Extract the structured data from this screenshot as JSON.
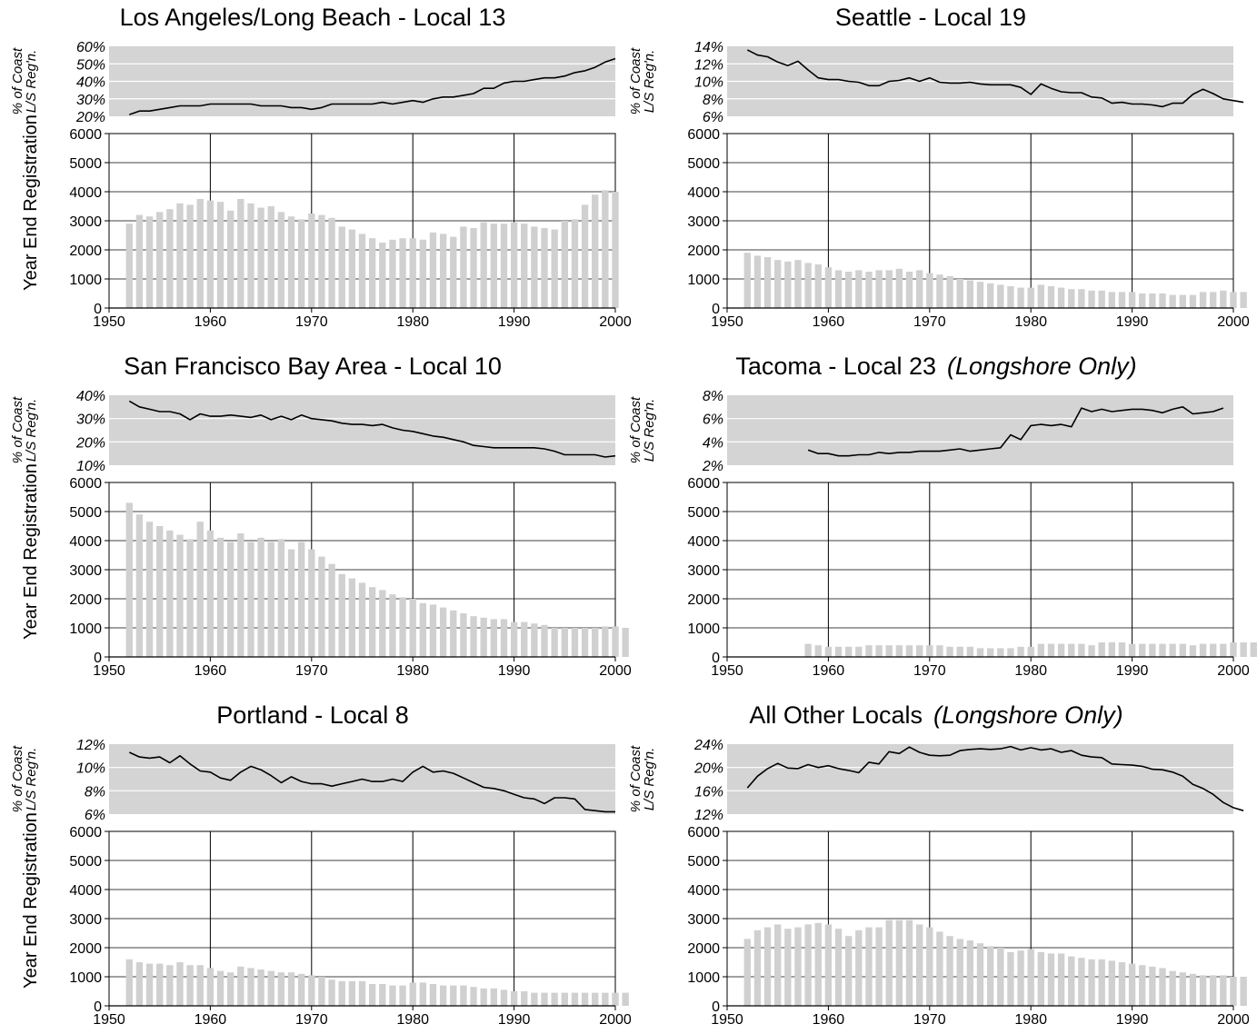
{
  "chart_data": [
    {
      "type": "bar",
      "title": "Los Angeles/Long Beach - Local 13",
      "subtitle": "",
      "ylabel": "Year End Registration",
      "ylim": [
        0,
        6000
      ],
      "xlim": [
        1950,
        2000
      ],
      "yticks": [
        "0",
        "1000",
        "2000",
        "3000",
        "4000",
        "5000",
        "6000"
      ],
      "xticks": [
        "1950",
        "1960",
        "1970",
        "1980",
        "1990",
        "2000"
      ],
      "years_start": 1952,
      "values": [
        2900,
        3200,
        3150,
        3300,
        3400,
        3600,
        3550,
        3750,
        3700,
        3650,
        3350,
        3750,
        3600,
        3450,
        3500,
        3300,
        3150,
        3050,
        3250,
        3200,
        3100,
        2800,
        2700,
        2550,
        2400,
        2250,
        2350,
        2400,
        2400,
        2350,
        2600,
        2550,
        2450,
        2800,
        2750,
        2950,
        2900,
        2900,
        2950,
        2900,
        2800,
        2750,
        2700,
        3000,
        3050,
        3550,
        3900,
        4050,
        4000
      ],
      "share": {
        "ylabel": [
          "% of Coast",
          "L/S Reg'n."
        ],
        "ylim": [
          20,
          60
        ],
        "yticks": [
          "20%",
          "30%",
          "40%",
          "50%",
          "60%"
        ],
        "values": [
          21,
          23,
          23,
          24,
          25,
          26,
          26,
          26,
          27,
          27,
          27,
          27,
          27,
          26,
          26,
          26,
          25,
          25,
          24,
          25,
          27,
          27,
          27,
          27,
          27,
          28,
          27,
          28,
          29,
          28,
          30,
          31,
          31,
          32,
          33,
          36,
          36,
          39,
          40,
          40,
          41,
          42,
          42,
          43,
          45,
          46,
          48,
          51,
          53
        ]
      }
    },
    {
      "type": "bar",
      "title": "Seattle - Local 19",
      "subtitle": "",
      "ylabel": "",
      "ylim": [
        0,
        6000
      ],
      "xlim": [
        1950,
        2000
      ],
      "yticks": [
        "0",
        "1000",
        "2000",
        "3000",
        "4000",
        "5000",
        "6000"
      ],
      "xticks": [
        "1950",
        "1960",
        "1970",
        "1980",
        "1990",
        "2000"
      ],
      "years_start": 1952,
      "values": [
        1900,
        1800,
        1750,
        1650,
        1600,
        1650,
        1550,
        1500,
        1400,
        1300,
        1250,
        1300,
        1250,
        1300,
        1300,
        1350,
        1250,
        1300,
        1200,
        1150,
        1100,
        1000,
        950,
        900,
        850,
        800,
        750,
        700,
        700,
        800,
        750,
        700,
        650,
        650,
        600,
        600,
        550,
        550,
        550,
        500,
        500,
        500,
        450,
        450,
        450,
        550,
        550,
        600,
        550,
        550
      ],
      "share": {
        "ylabel": [
          "% of Coast",
          "L/S Reg'n."
        ],
        "ylim": [
          6,
          14
        ],
        "yticks": [
          "6%",
          "8%",
          "10%",
          "12%",
          "14%"
        ],
        "values": [
          13.6,
          13.0,
          12.8,
          12.2,
          11.8,
          12.3,
          11.3,
          10.4,
          10.2,
          10.2,
          10.0,
          9.9,
          9.5,
          9.5,
          10.0,
          10.1,
          10.4,
          10.0,
          10.4,
          9.9,
          9.8,
          9.8,
          9.9,
          9.7,
          9.6,
          9.6,
          9.6,
          9.3,
          8.5,
          9.7,
          9.2,
          8.8,
          8.7,
          8.7,
          8.2,
          8.1,
          7.5,
          7.6,
          7.4,
          7.4,
          7.3,
          7.1,
          7.5,
          7.5,
          8.5,
          9.1,
          8.6,
          8.0,
          7.8,
          7.6
        ]
      }
    },
    {
      "type": "bar",
      "title": "San Francisco Bay Area - Local 10",
      "subtitle": "",
      "ylabel": "Year End Registration",
      "ylim": [
        0,
        6000
      ],
      "xlim": [
        1950,
        2000
      ],
      "yticks": [
        "0",
        "1000",
        "2000",
        "3000",
        "4000",
        "5000",
        "6000"
      ],
      "xticks": [
        "1950",
        "1960",
        "1970",
        "1980",
        "1990",
        "2000"
      ],
      "years_start": 1952,
      "values": [
        5300,
        4900,
        4650,
        4500,
        4350,
        4200,
        4050,
        4650,
        4350,
        4100,
        3950,
        4250,
        3950,
        4100,
        3950,
        4050,
        3700,
        3950,
        3700,
        3450,
        3200,
        2850,
        2700,
        2550,
        2400,
        2300,
        2150,
        2050,
        2000,
        1850,
        1800,
        1700,
        1600,
        1500,
        1400,
        1350,
        1300,
        1300,
        1200,
        1200,
        1150,
        1100,
        1000,
        1000,
        1000,
        1000,
        1000,
        1050,
        1050,
        1000
      ],
      "share": {
        "ylabel": [
          "% of Coast",
          "L/S Reg'n."
        ],
        "ylim": [
          10,
          40
        ],
        "yticks": [
          "10%",
          "20%",
          "30%",
          "40%"
        ],
        "values": [
          37.5,
          35,
          34,
          33,
          33,
          32,
          29.5,
          32,
          31,
          31,
          31.5,
          31,
          30.5,
          31.5,
          29.5,
          31,
          29.5,
          31.5,
          30,
          29.5,
          29,
          28,
          27.5,
          27.5,
          27,
          27.5,
          26,
          25,
          24.5,
          23.5,
          22.5,
          22,
          21,
          20,
          18.5,
          18,
          17.5,
          17.5,
          17.5,
          17.5,
          17.5,
          17,
          16,
          14.5,
          14.5,
          14.5,
          14.5,
          13.5,
          14
        ]
      }
    },
    {
      "type": "bar",
      "title": "Tacoma - Local 23",
      "subtitle": "(Longshore Only)",
      "ylabel": "",
      "ylim": [
        0,
        6000
      ],
      "xlim": [
        1950,
        2000
      ],
      "yticks": [
        "0",
        "1000",
        "2000",
        "3000",
        "4000",
        "5000",
        "6000"
      ],
      "xticks": [
        "1950",
        "1960",
        "1970",
        "1980",
        "1990",
        "2000"
      ],
      "years_start": 1958,
      "values": [
        450,
        400,
        350,
        350,
        350,
        350,
        400,
        400,
        400,
        400,
        400,
        400,
        400,
        400,
        350,
        350,
        350,
        300,
        300,
        300,
        300,
        350,
        350,
        450,
        450,
        450,
        450,
        450,
        400,
        500,
        500,
        500,
        450,
        450,
        450,
        450,
        450,
        450,
        400,
        450,
        450,
        450,
        500,
        500,
        500
      ],
      "share": {
        "ylabel": [
          "% of Coast",
          "L/S Reg'n."
        ],
        "ylim": [
          2,
          8
        ],
        "yticks": [
          "2%",
          "4%",
          "6%",
          "8%"
        ],
        "values": [
          3.3,
          3.0,
          3.0,
          2.8,
          2.8,
          2.9,
          2.9,
          3.1,
          3.0,
          3.1,
          3.1,
          3.2,
          3.2,
          3.2,
          3.3,
          3.4,
          3.2,
          3.3,
          3.4,
          3.5,
          4.6,
          4.2,
          5.4,
          5.5,
          5.4,
          5.5,
          5.3,
          6.9,
          6.6,
          6.8,
          6.6,
          6.7,
          6.8,
          6.8,
          6.7,
          6.5,
          6.8,
          7.0,
          6.4,
          6.5,
          6.6,
          6.9
        ]
      }
    },
    {
      "type": "bar",
      "title": "Portland - Local 8",
      "subtitle": "",
      "ylabel": "Year End Registration",
      "ylim": [
        0,
        6000
      ],
      "xlim": [
        1950,
        2000
      ],
      "yticks": [
        "0",
        "1000",
        "2000",
        "3000",
        "4000",
        "5000",
        "6000"
      ],
      "xticks": [
        "1950",
        "1960",
        "1970",
        "1980",
        "1990",
        "2000"
      ],
      "years_start": 1952,
      "values": [
        1600,
        1500,
        1450,
        1450,
        1400,
        1500,
        1400,
        1400,
        1300,
        1200,
        1150,
        1350,
        1300,
        1250,
        1200,
        1150,
        1150,
        1100,
        1050,
        1000,
        900,
        850,
        850,
        850,
        750,
        750,
        700,
        700,
        800,
        800,
        750,
        700,
        700,
        700,
        650,
        600,
        600,
        550,
        500,
        500,
        450,
        450,
        450,
        450,
        450,
        450,
        450,
        450,
        450,
        450
      ],
      "share": {
        "ylabel": [
          "% of Coast",
          "L/S Reg'n."
        ],
        "ylim": [
          6,
          12
        ],
        "yticks": [
          "6%",
          "8%",
          "10%",
          "12%"
        ],
        "values": [
          11.3,
          10.9,
          10.8,
          10.9,
          10.4,
          11.0,
          10.3,
          9.7,
          9.6,
          9.1,
          8.9,
          9.6,
          10.1,
          9.8,
          9.3,
          8.7,
          9.2,
          8.8,
          8.6,
          8.6,
          8.4,
          8.6,
          8.8,
          9.0,
          8.8,
          8.8,
          9.0,
          8.8,
          9.6,
          10.1,
          9.6,
          9.7,
          9.5,
          9.1,
          8.7,
          8.3,
          8.2,
          8.0,
          7.7,
          7.4,
          7.3,
          6.9,
          7.4,
          7.4,
          7.3,
          6.4,
          6.3,
          6.2,
          6.2
        ]
      }
    },
    {
      "type": "bar",
      "title": "All Other Locals",
      "subtitle": "(Longshore Only)",
      "ylabel": "",
      "ylim": [
        0,
        6000
      ],
      "xlim": [
        1950,
        2000
      ],
      "yticks": [
        "0",
        "1000",
        "2000",
        "3000",
        "4000",
        "5000",
        "6000"
      ],
      "xticks": [
        "1950",
        "1960",
        "1970",
        "1980",
        "1990",
        "2000"
      ],
      "years_start": 1952,
      "values": [
        2300,
        2600,
        2700,
        2800,
        2650,
        2700,
        2800,
        2850,
        2800,
        2650,
        2400,
        2600,
        2700,
        2700,
        2950,
        2950,
        2950,
        2800,
        2700,
        2550,
        2400,
        2300,
        2250,
        2150,
        2050,
        2000,
        1850,
        1900,
        1950,
        1850,
        1800,
        1800,
        1700,
        1650,
        1600,
        1600,
        1550,
        1500,
        1450,
        1400,
        1350,
        1300,
        1200,
        1150,
        1100,
        1050,
        1050,
        1050,
        1000,
        1000
      ],
      "share": {
        "ylabel": [
          "% of Coast",
          "L/S Reg'n."
        ],
        "ylim": [
          12,
          24
        ],
        "yticks": [
          "12%",
          "16%",
          "20%",
          "24%"
        ],
        "values": [
          16.5,
          18.5,
          19.8,
          20.7,
          19.9,
          19.8,
          20.5,
          20.0,
          20.3,
          19.8,
          19.5,
          19.1,
          20.9,
          20.6,
          22.7,
          22.4,
          23.5,
          22.6,
          22.1,
          22.0,
          22.1,
          22.9,
          23.1,
          23.2,
          23.1,
          23.2,
          23.6,
          23.0,
          23.4,
          23.0,
          23.2,
          22.6,
          22.9,
          22.1,
          21.8,
          21.7,
          20.6,
          20.5,
          20.4,
          20.2,
          19.7,
          19.6,
          19.2,
          18.5,
          17.1,
          16.4,
          15.4,
          14.0,
          13.1,
          12.6
        ]
      }
    }
  ]
}
